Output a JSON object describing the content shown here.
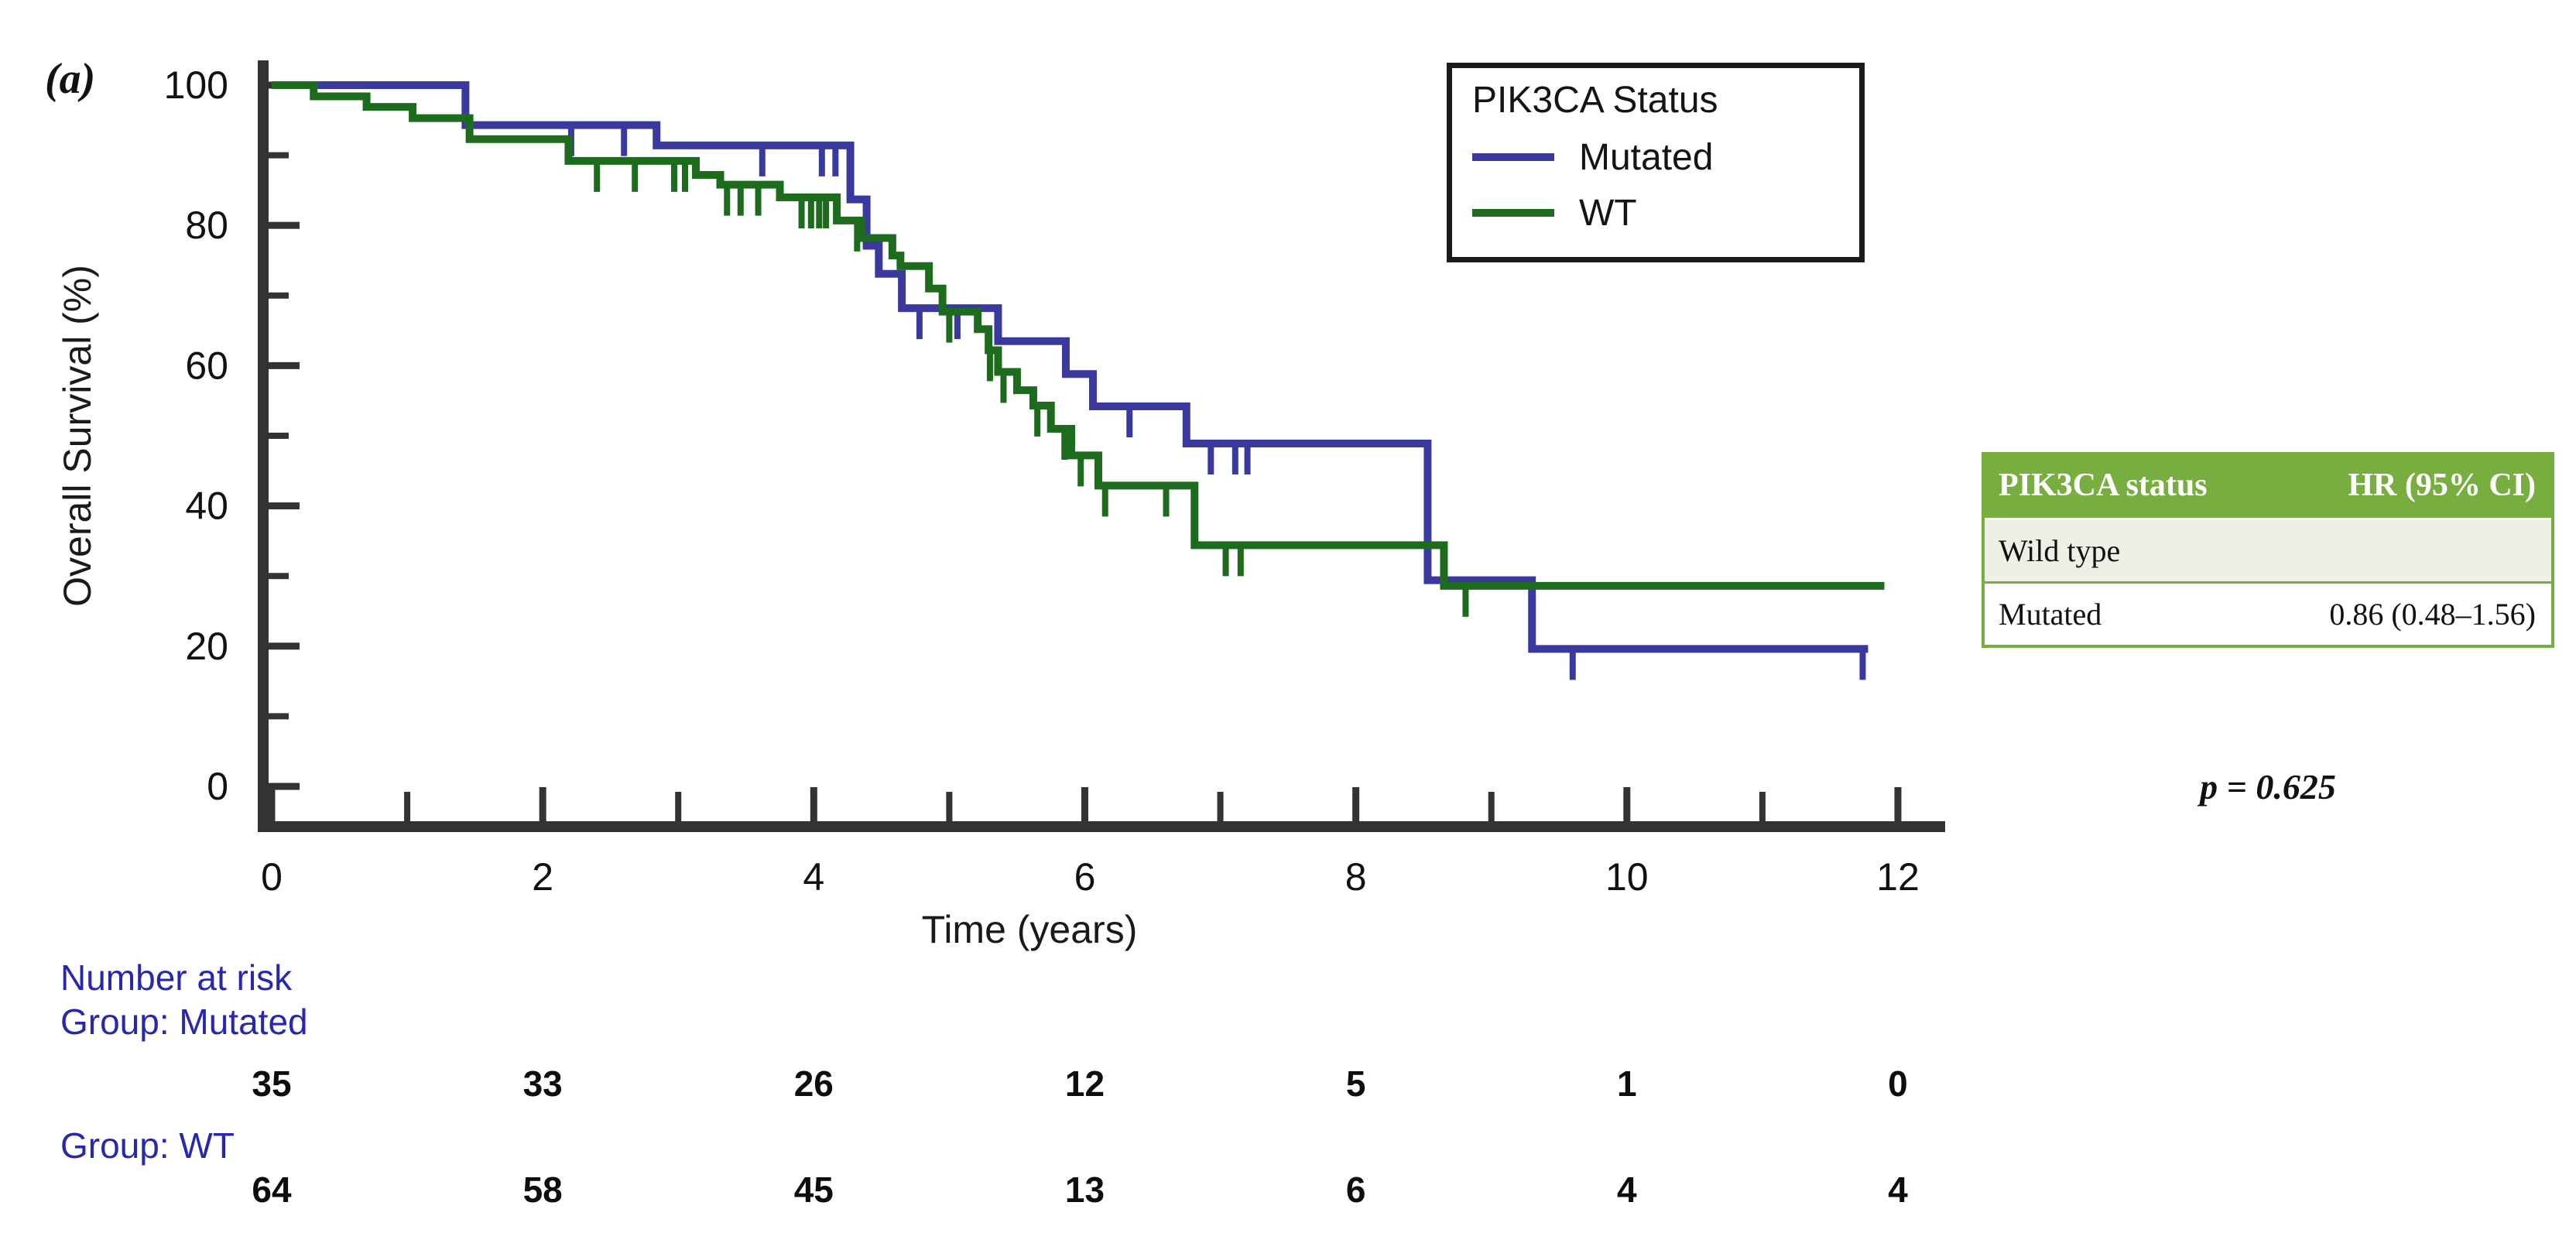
{
  "panel_label": "(a)",
  "axes": {
    "y_title": "Overall Survival (%)",
    "x_title": "Time (years)",
    "x_ticks": [
      0,
      2,
      4,
      6,
      8,
      10,
      12
    ],
    "x_minor_ticks": [
      1,
      3,
      5,
      7,
      9,
      11
    ],
    "y_ticks": [
      0,
      20,
      40,
      60,
      80,
      100
    ],
    "y_minor_ticks": [
      10,
      30,
      50,
      70,
      90
    ],
    "axis_color": "#333333"
  },
  "legend": {
    "title": "PIK3CA Status",
    "items": [
      {
        "label": "Mutated",
        "color": "#3a3a9e"
      },
      {
        "label": "WT",
        "color": "#1d6b1d"
      }
    ]
  },
  "chart_data": {
    "type": "line",
    "subtype": "kaplan-meier-step",
    "title": "",
    "xlabel": "Time (years)",
    "ylabel": "Overall Survival (%)",
    "xlim": [
      0,
      12
    ],
    "ylim": [
      0,
      100
    ],
    "grid": false,
    "legend_position": "top-center-inside",
    "series": [
      {
        "name": "Mutated",
        "color": "#3a3a9e",
        "steps": [
          [
            0,
            100
          ],
          [
            1.43,
            94.3
          ],
          [
            2.84,
            91.4
          ],
          [
            4.27,
            83.7
          ],
          [
            4.39,
            77.1
          ],
          [
            4.48,
            73.1
          ],
          [
            4.65,
            68.2
          ],
          [
            5.36,
            63.5
          ],
          [
            5.86,
            58.8
          ],
          [
            6.06,
            54.2
          ],
          [
            6.75,
            48.9
          ],
          [
            8.53,
            29.4
          ],
          [
            9.3,
            19.6
          ]
        ],
        "end_time": 11.78,
        "censor_times": [
          2.21,
          2.6,
          3.62,
          4.06,
          4.16,
          4.78,
          5.06,
          6.33,
          6.93,
          7.11,
          7.2,
          9.6,
          11.74
        ]
      },
      {
        "name": "WT",
        "color": "#1d6b1d",
        "steps": [
          [
            0,
            100
          ],
          [
            0.31,
            98.4
          ],
          [
            0.7,
            96.9
          ],
          [
            1.04,
            95.3
          ],
          [
            1.46,
            92.3
          ],
          [
            2.19,
            89.2
          ],
          [
            3.13,
            87.2
          ],
          [
            3.31,
            85.8
          ],
          [
            3.75,
            84.0
          ],
          [
            4.17,
            80.7
          ],
          [
            4.35,
            78.2
          ],
          [
            4.58,
            75.7
          ],
          [
            4.64,
            74.2
          ],
          [
            4.85,
            71.0
          ],
          [
            4.95,
            67.7
          ],
          [
            5.21,
            65.2
          ],
          [
            5.29,
            62.2
          ],
          [
            5.36,
            59.1
          ],
          [
            5.5,
            56.5
          ],
          [
            5.62,
            54.3
          ],
          [
            5.75,
            51.0
          ],
          [
            5.9,
            47.2
          ],
          [
            6.1,
            42.9
          ],
          [
            6.81,
            34.4
          ],
          [
            8.65,
            28.6
          ]
        ],
        "end_time": 11.9,
        "censor_times": [
          2.4,
          2.68,
          2.97,
          3.05,
          3.36,
          3.46,
          3.59,
          3.91,
          3.98,
          4.04,
          4.09,
          4.32,
          5.0,
          5.3,
          5.4,
          5.65,
          5.85,
          5.97,
          6.15,
          6.6,
          7.04,
          7.15,
          8.81
        ]
      }
    ]
  },
  "hr_table": {
    "header": [
      "PIK3CA status",
      "HR (95% CI)"
    ],
    "rows": [
      {
        "label": "Wild type",
        "value": ""
      },
      {
        "label": "Mutated",
        "value": "0.86 (0.48–1.56)"
      }
    ],
    "header_bg": "#78ae40",
    "header_text_color": "#ffffff",
    "alt_row_bg": "#edf0e5",
    "border_color": "#78ae40"
  },
  "p_value": "p = 0.625",
  "number_at_risk": {
    "title": "Number at risk",
    "label_color": "#2828ad",
    "times": [
      0,
      2,
      4,
      6,
      8,
      10,
      12
    ],
    "groups": [
      {
        "label": "Group: Mutated",
        "counts": [
          35,
          33,
          26,
          12,
          5,
          1,
          0
        ]
      },
      {
        "label": "Group: WT",
        "counts": [
          64,
          58,
          45,
          13,
          6,
          4,
          4
        ]
      }
    ]
  }
}
